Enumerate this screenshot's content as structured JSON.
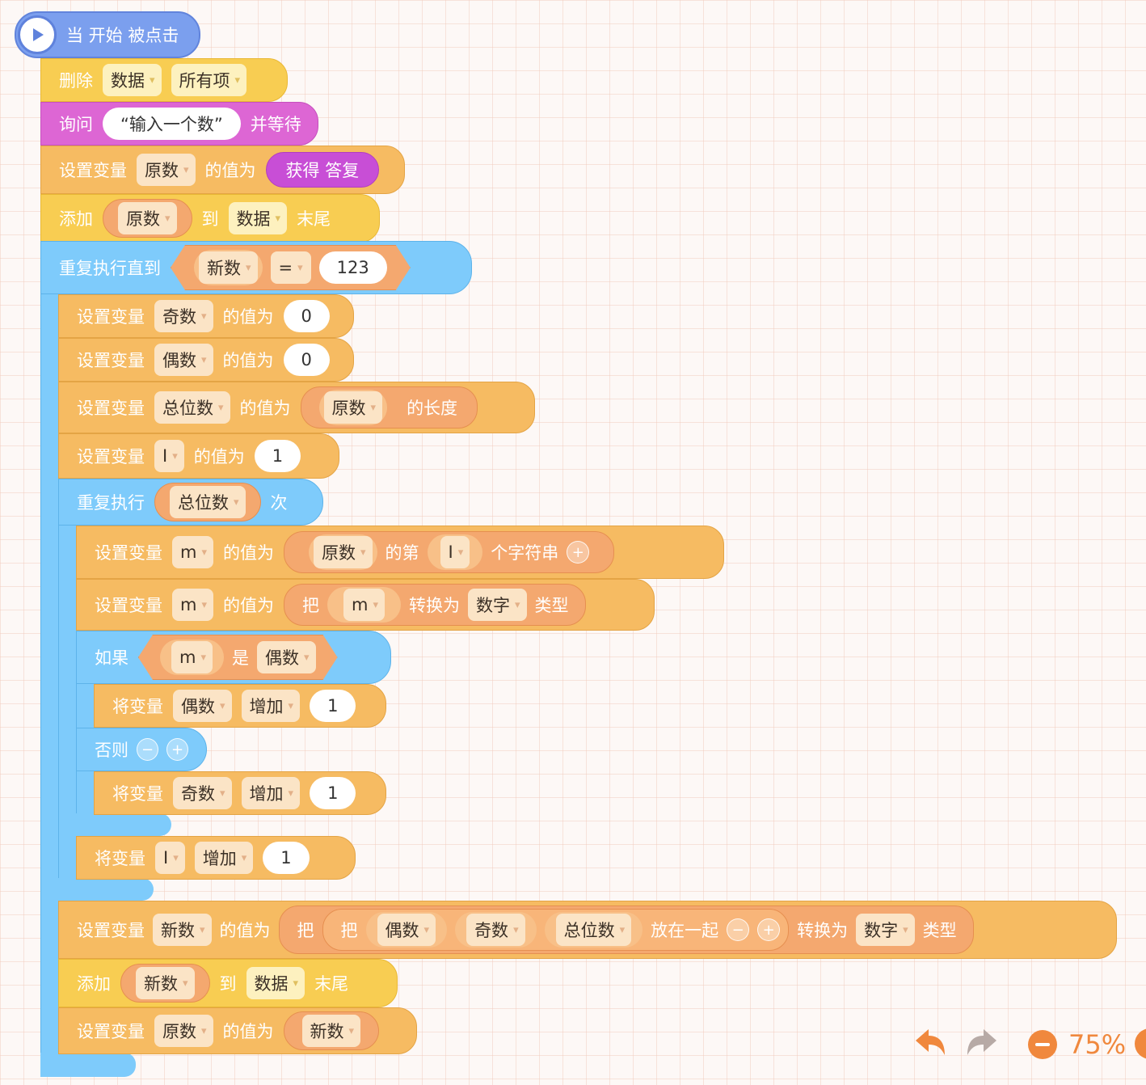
{
  "event": {
    "label": "当 开始 被点击"
  },
  "b1": {
    "label": "删除",
    "list": "数据",
    "opt": "所有项"
  },
  "b2": {
    "label": "询问",
    "text": "“输入一个数”",
    "suffix": "并等待"
  },
  "b3": {
    "label": "设置变量",
    "var": "原数",
    "mid": "的值为",
    "reporter": "获得 答复"
  },
  "b4": {
    "label": "添加",
    "var": "原数",
    "mid": "到",
    "list": "数据",
    "suffix": "末尾"
  },
  "until": {
    "label": "重复执行直到",
    "var": "新数",
    "op": "=",
    "value": "123"
  },
  "s1": {
    "label": "设置变量",
    "var": "奇数",
    "mid": "的值为",
    "value": "0"
  },
  "s2": {
    "label": "设置变量",
    "var": "偶数",
    "mid": "的值为",
    "value": "0"
  },
  "s3": {
    "label": "设置变量",
    "var": "总位数",
    "mid": "的值为",
    "arg": "原数",
    "suffix": "的长度"
  },
  "s4": {
    "label": "设置变量",
    "var": "I",
    "mid": "的值为",
    "value": "1"
  },
  "rep": {
    "label": "重复执行",
    "var": "总位数",
    "suffix": "次"
  },
  "m1": {
    "label": "设置变量",
    "var": "m",
    "mid": "的值为",
    "arg": "原数",
    "nth": "的第",
    "idx": "I",
    "suffix": "个字符串"
  },
  "m2": {
    "label": "设置变量",
    "var": "m",
    "mid": "的值为",
    "pre": "把",
    "arg": "m",
    "conv": "转换为",
    "type": "数字",
    "suffix": "类型"
  },
  "iff": {
    "label": "如果",
    "var": "m",
    "is": "是",
    "kind": "偶数"
  },
  "inc1": {
    "label": "将变量",
    "var": "偶数",
    "op": "增加",
    "value": "1"
  },
  "els": {
    "label": "否则"
  },
  "inc2": {
    "label": "将变量",
    "var": "奇数",
    "op": "增加",
    "value": "1"
  },
  "inc3": {
    "label": "将变量",
    "var": "I",
    "op": "增加",
    "value": "1"
  },
  "n1": {
    "label": "设置变量",
    "var": "新数",
    "mid": "的值为",
    "pre1": "把",
    "pre2": "把",
    "a": "偶数",
    "b": "奇数",
    "c": "总位数",
    "join": "放在一起",
    "conv": "转换为",
    "type": "数字",
    "suffix": "类型"
  },
  "n2": {
    "label": "添加",
    "var": "新数",
    "mid": "到",
    "list": "数据",
    "suffix": "末尾"
  },
  "n3": {
    "label": "设置变量",
    "var": "原数",
    "mid": "的值为",
    "arg": "新数"
  },
  "toolbar": {
    "zoom": "75%"
  },
  "colors": {
    "event": "#7b9fee",
    "data": "#f8cd52",
    "sense": "#dd66d4",
    "variable": "#f6bb62",
    "control": "#7ecbfb",
    "operator": "#f4a86f",
    "toolbar": "#f0883d"
  },
  "icons": {
    "play": "play-icon",
    "undo": "undo-icon",
    "redo": "redo-icon",
    "zoom_out": "zoom-out-icon",
    "dropdown": "chevron-down-icon"
  }
}
